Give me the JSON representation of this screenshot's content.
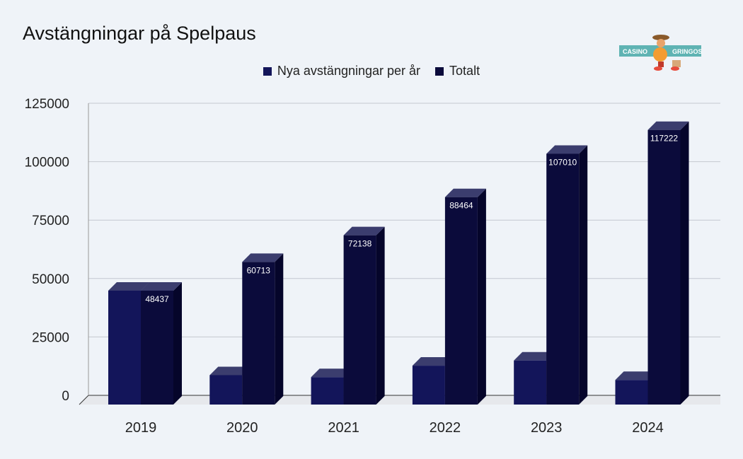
{
  "chart_data": {
    "type": "bar",
    "title": "Avstängningar på Spelpaus",
    "categories": [
      "2019",
      "2020",
      "2021",
      "2022",
      "2023",
      "2024"
    ],
    "series": [
      {
        "name": "Nya avstängningar per år",
        "values": [
          48437,
          12276,
          11425,
          16326,
          18546,
          10212
        ],
        "color": "#13155a"
      },
      {
        "name": "Totalt",
        "values": [
          48437,
          60713,
          72138,
          88464,
          107010,
          117222
        ],
        "color": "#0b0b3b",
        "labels": [
          "48437",
          "60713",
          "72138",
          "88464",
          "107010",
          "117222"
        ]
      }
    ],
    "ylim": [
      0,
      125000
    ],
    "yticks": [
      "0",
      "25000",
      "50000",
      "75000",
      "100000",
      "125000"
    ],
    "grid": true,
    "legend": "top",
    "style": "3d"
  },
  "logo": {
    "left": "CASINO",
    "right": "GRINGOS"
  }
}
